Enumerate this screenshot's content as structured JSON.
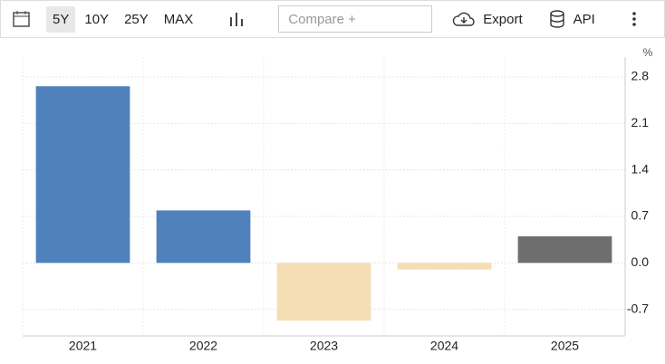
{
  "toolbar": {
    "ranges": [
      "5Y",
      "10Y",
      "25Y",
      "MAX"
    ],
    "compare_placeholder": "Compare +",
    "export": "Export",
    "api": "API"
  },
  "chart_data": {
    "type": "bar",
    "y_unit": "%",
    "categories": [
      "2021",
      "2022",
      "2023",
      "2024",
      "2025"
    ],
    "values": [
      2.66,
      0.79,
      -0.87,
      -0.1,
      0.4
    ],
    "colors": [
      "#4f81bd",
      "#4f81bd",
      "#f5deb3",
      "#f5deb3",
      "#6e6e6e"
    ],
    "ylim": [
      -1.1,
      3.1
    ],
    "yticks": [
      -0.7,
      {
        "value": 0,
        "label": "0.0"
      },
      0.7,
      1.4,
      2.1,
      2.8
    ],
    "grid": true
  }
}
